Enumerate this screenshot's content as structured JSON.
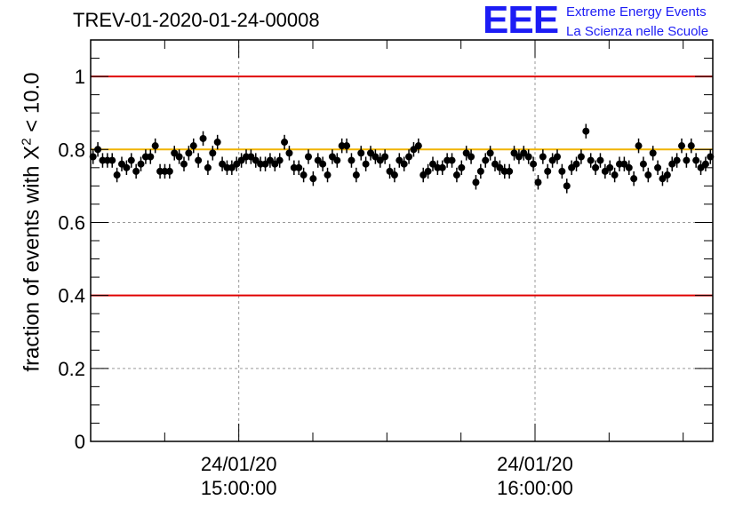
{
  "title": "TREV-01-2020-01-24-00008",
  "logo": {
    "letters": "EEE",
    "line1": "Extreme Energy Events",
    "line2": "La Scienza nelle Scuole",
    "color": "#1c1cf5"
  },
  "chart_data": {
    "type": "scatter",
    "ylabel_prefix": "fraction of events with X",
    "ylabel_sup": "2",
    "ylabel_suffix": " < 10.0",
    "xlabel": "",
    "ylim": [
      0,
      1.1
    ],
    "yticks": [
      0,
      0.2,
      0.4,
      0.6,
      0.8,
      1
    ],
    "ytick_labels": [
      "0",
      "0.2",
      "0.4",
      "0.6",
      "0.8",
      "1"
    ],
    "grid": true,
    "xlim": [
      "24/01/20 14:30:00",
      "24/01/20 16:36:00"
    ],
    "xtick_labels": [
      {
        "date": "24/01/20",
        "time": "15:00:00"
      },
      {
        "date": "24/01/20",
        "time": "16:00:00"
      }
    ],
    "reference_lines": [
      {
        "y": 1.0,
        "color": "#e00000"
      },
      {
        "y": 0.4,
        "color": "#e00000"
      },
      {
        "y": 0.8,
        "color": "#f0b400"
      }
    ],
    "series": [
      {
        "marker_color": "#000000",
        "error": 0.02,
        "x_start": "24/01/20 14:30:00",
        "x_end": "24/01/20 16:36:00",
        "values": [
          0.78,
          0.8,
          0.77,
          0.77,
          0.77,
          0.73,
          0.76,
          0.75,
          0.77,
          0.74,
          0.76,
          0.78,
          0.78,
          0.81,
          0.74,
          0.74,
          0.74,
          0.79,
          0.78,
          0.76,
          0.79,
          0.81,
          0.77,
          0.83,
          0.75,
          0.79,
          0.82,
          0.76,
          0.75,
          0.75,
          0.76,
          0.77,
          0.78,
          0.78,
          0.77,
          0.76,
          0.76,
          0.77,
          0.76,
          0.77,
          0.82,
          0.79,
          0.75,
          0.75,
          0.73,
          0.78,
          0.72,
          0.77,
          0.76,
          0.73,
          0.78,
          0.77,
          0.81,
          0.81,
          0.77,
          0.73,
          0.79,
          0.76,
          0.79,
          0.78,
          0.77,
          0.78,
          0.74,
          0.73,
          0.77,
          0.76,
          0.78,
          0.8,
          0.81,
          0.73,
          0.74,
          0.76,
          0.75,
          0.75,
          0.77,
          0.77,
          0.73,
          0.75,
          0.79,
          0.78,
          0.71,
          0.74,
          0.77,
          0.79,
          0.76,
          0.75,
          0.74,
          0.74,
          0.79,
          0.78,
          0.79,
          0.78,
          0.76,
          0.71,
          0.78,
          0.74,
          0.77,
          0.78,
          0.74,
          0.7,
          0.75,
          0.76,
          0.78,
          0.85,
          0.77,
          0.75,
          0.77,
          0.74,
          0.75,
          0.73,
          0.76,
          0.76,
          0.75,
          0.72,
          0.81,
          0.76,
          0.73,
          0.79,
          0.75,
          0.72,
          0.73,
          0.76,
          0.77,
          0.81,
          0.77,
          0.81,
          0.77,
          0.75,
          0.76,
          0.78
        ]
      }
    ]
  }
}
